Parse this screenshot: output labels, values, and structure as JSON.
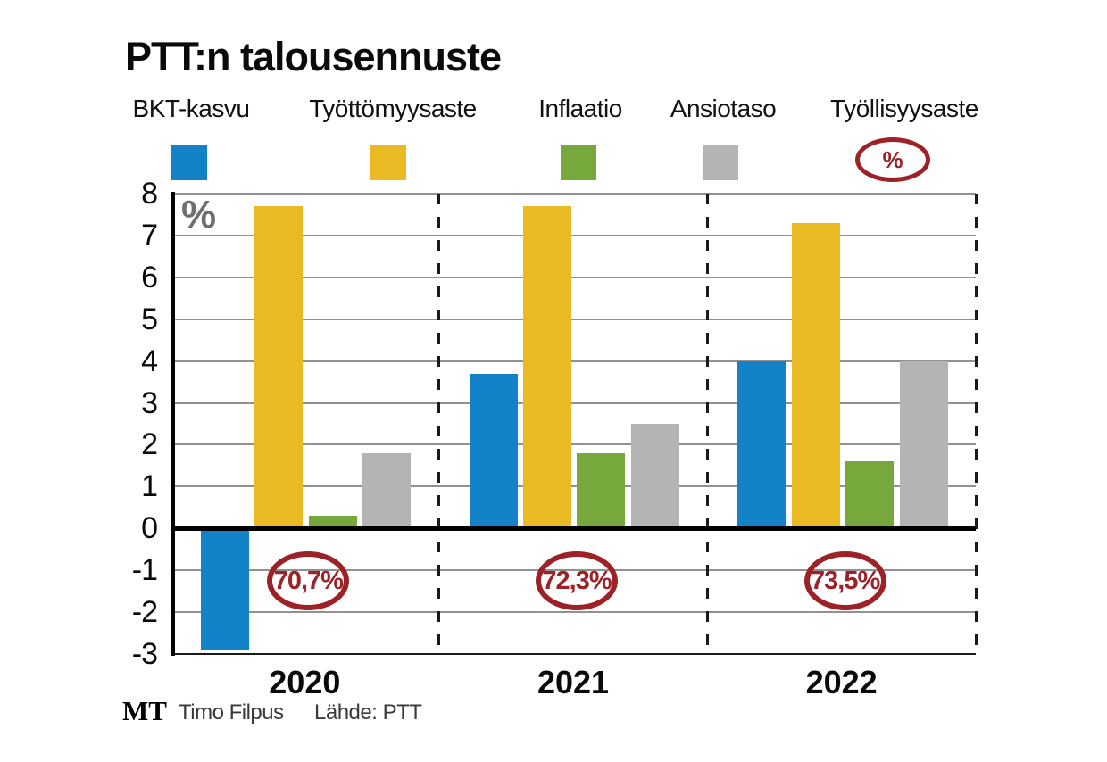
{
  "title": "PTT:n talousennuste",
  "chart_data": {
    "type": "bar",
    "categories": [
      "2020",
      "2021",
      "2022"
    ],
    "series": [
      {
        "name": "BKT-kasvu",
        "color": "#1482c8",
        "values": [
          -2.9,
          3.7,
          4.0
        ]
      },
      {
        "name": "Työttömyysaste",
        "color": "#e9ba23",
        "values": [
          7.7,
          7.7,
          7.3
        ]
      },
      {
        "name": "Inflaatio",
        "color": "#76a83c",
        "values": [
          0.3,
          1.8,
          1.6
        ]
      },
      {
        "name": "Ansiotaso",
        "color": "#b4b4b4",
        "values": [
          1.8,
          2.5,
          4.0
        ]
      }
    ],
    "badges": {
      "series_name": "Työllisyysaste",
      "values": [
        "70,7%",
        "72,3%",
        "73,5%"
      ],
      "color": "#9d2227"
    },
    "unit_label": "%",
    "ylim": [
      -3,
      8
    ],
    "ytick_step": 1,
    "grid": true,
    "legend_position": "top",
    "xlabel": "",
    "ylabel": "%"
  },
  "legend": {
    "items": [
      {
        "label": "BKT-kasvu",
        "swatch": "square",
        "color": "#1482c8"
      },
      {
        "label": "Työttömyysaste",
        "swatch": "square",
        "color": "#e9ba23"
      },
      {
        "label": "Inflaatio",
        "swatch": "square",
        "color": "#76a83c"
      },
      {
        "label": "Ansiotaso",
        "swatch": "square",
        "color": "#b4b4b4"
      },
      {
        "label": "Työllisyysaste",
        "swatch": "ellipse",
        "symbol": "%",
        "color": "#9d2227"
      }
    ]
  },
  "colors": {
    "grid": "#919191",
    "axis": "#000000",
    "plot_bottom": "#1a1a1a",
    "divider": "#1a1a1a",
    "unit_label_gray": "#6f6f6f"
  },
  "footer": {
    "logo": "MT",
    "credit": "Timo Filpus",
    "source": "Lähde: PTT"
  }
}
